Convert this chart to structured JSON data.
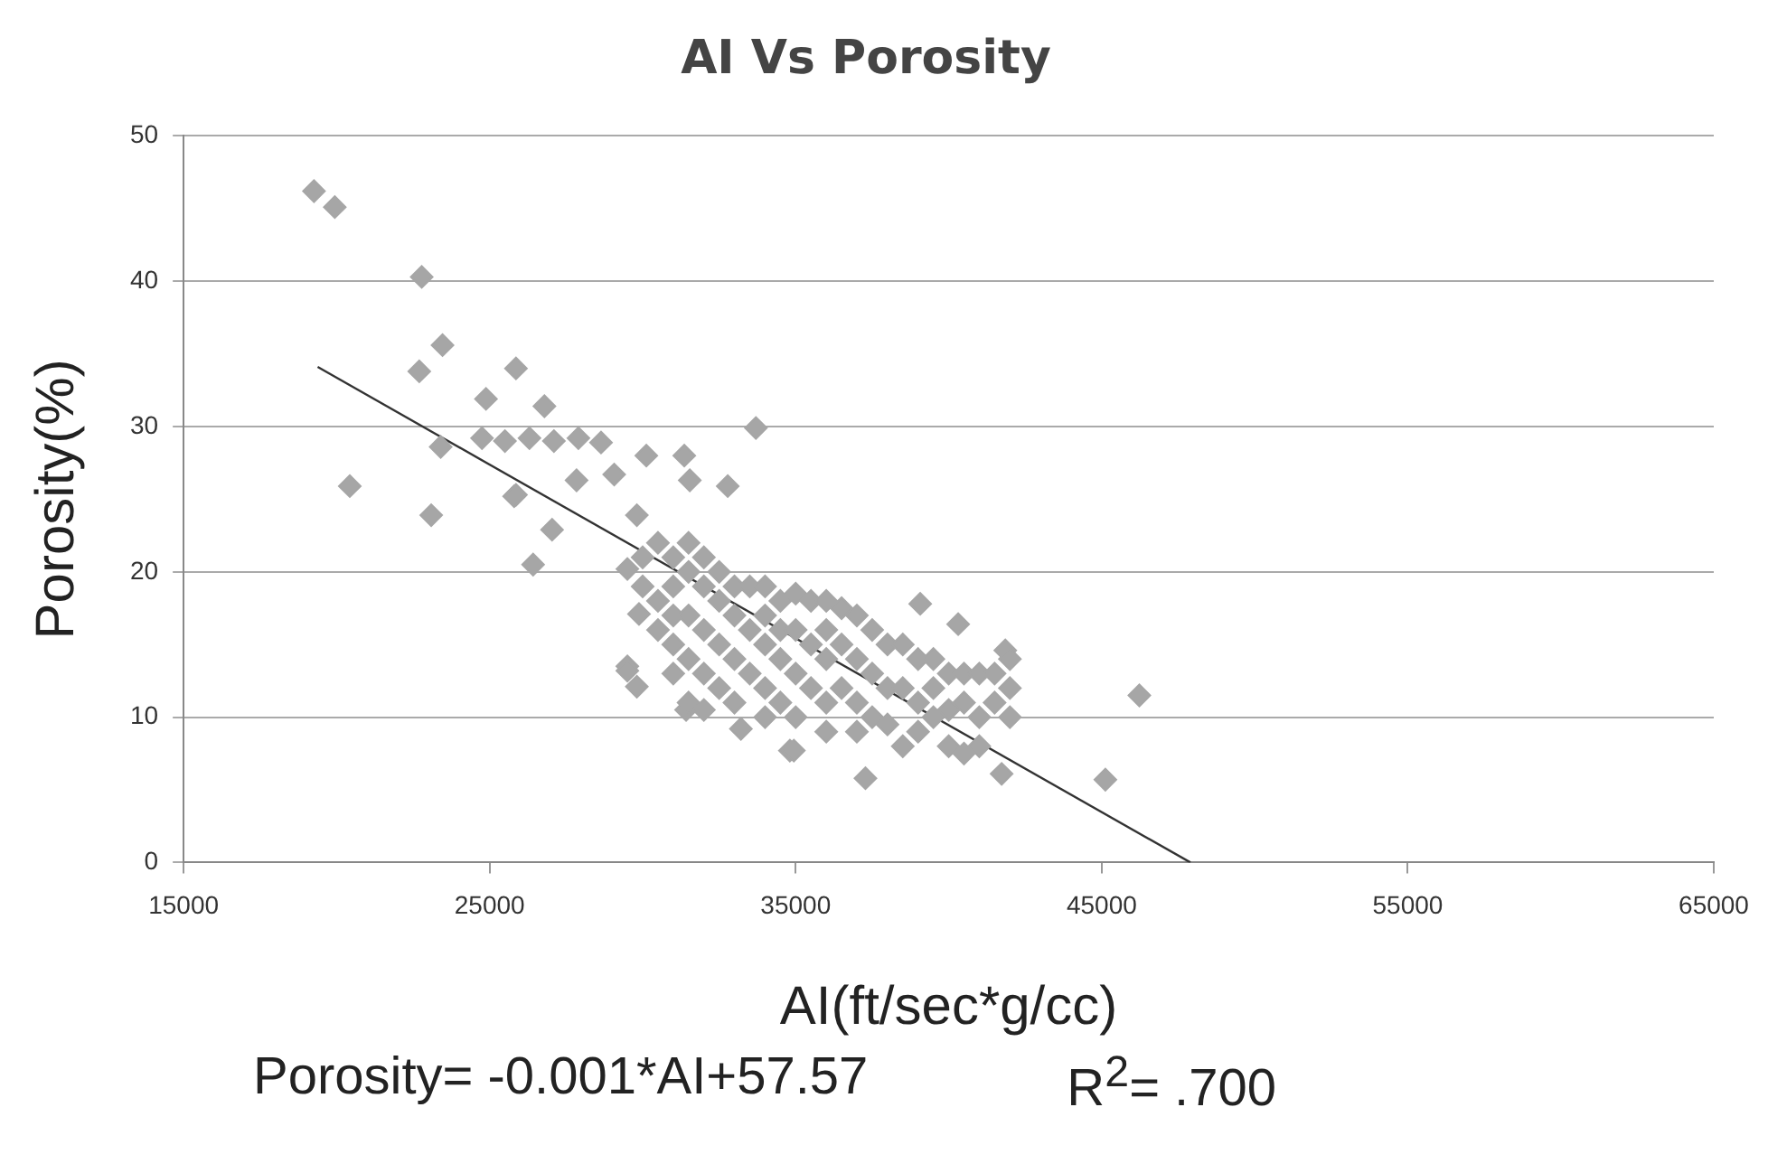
{
  "chart_data": {
    "type": "scatter",
    "title": "AI Vs Porosity",
    "xlabel": "AI(ft/sec*g/cc)",
    "ylabel": "Porosity(%)",
    "xlim": [
      15000,
      65000
    ],
    "xticks": [
      15000,
      25000,
      35000,
      45000,
      55000,
      65000
    ],
    "ylim": [
      0,
      50
    ],
    "yticks": [
      0,
      10,
      20,
      30,
      40,
      50
    ],
    "grid": "y",
    "legend": false,
    "marker": "diamond",
    "annotations": [
      "Porosity= -0.001*AI+57.57",
      "R$^{2}$= .700"
    ],
    "series": [
      {
        "color": "#a6a6a6",
        "x": [
          19260,
          19940,
          22780,
          23460,
          22700,
          25860,
          24880,
          26790,
          23400,
          20430,
          23090,
          25860,
          27040,
          26420,
          24750,
          25500,
          26300,
          27100,
          27900,
          28640,
          27840,
          29070,
          29810,
          29500,
          29880,
          29500,
          29810,
          30120,
          31360,
          33700,
          32780,
          31540,
          25800,
          29500,
          31420,
          33210,
          34810,
          39070,
          40310,
          46230,
          45120,
          41730,
          37280,
          34940,
          41850,
          30000,
          30000,
          30500,
          30500,
          30500,
          31000,
          31000,
          31000,
          31000,
          31000,
          31500,
          31500,
          31500,
          31500,
          31500,
          32000,
          32000,
          32000,
          32000,
          32000,
          32500,
          32500,
          32500,
          32500,
          33000,
          33000,
          33000,
          33000,
          33500,
          33500,
          33500,
          34000,
          34000,
          34000,
          34000,
          34000,
          34500,
          34500,
          34500,
          34500,
          35000,
          35000,
          35000,
          35000,
          35500,
          35500,
          35500,
          36000,
          36000,
          36000,
          36000,
          36000,
          36500,
          36500,
          36500,
          37000,
          37000,
          37000,
          37000,
          37500,
          37500,
          37500,
          38000,
          38000,
          38000,
          38500,
          38500,
          38500,
          39000,
          39000,
          39000,
          39500,
          39500,
          39500,
          40000,
          40000,
          40000,
          40500,
          40500,
          40500,
          41000,
          41000,
          41000,
          41500,
          41500,
          42000,
          42000,
          42000
        ],
        "values": [
          46.2,
          45.1,
          40.3,
          35.6,
          33.8,
          34.0,
          31.9,
          31.4,
          28.6,
          25.9,
          23.9,
          25.3,
          22.9,
          20.5,
          29.2,
          29.0,
          29.2,
          29.0,
          29.2,
          28.9,
          26.3,
          26.7,
          23.9,
          20.2,
          17.1,
          13.5,
          12.1,
          28.0,
          28.0,
          29.9,
          25.9,
          26.3,
          25.2,
          13.2,
          10.5,
          9.2,
          7.7,
          17.8,
          16.4,
          11.5,
          5.7,
          6.1,
          5.8,
          7.7,
          14.6,
          21,
          19,
          22,
          18,
          16,
          21,
          19,
          17,
          15,
          13,
          22,
          20,
          17,
          14,
          11,
          21,
          19,
          16,
          13,
          10.5,
          20,
          18,
          15,
          12,
          19,
          17,
          14,
          11,
          19,
          16,
          13,
          19,
          17,
          15,
          12,
          10,
          18,
          16,
          14,
          11,
          18.5,
          16,
          13,
          10,
          18,
          15,
          12,
          18,
          16,
          14,
          11,
          9,
          17.5,
          15,
          12,
          17,
          14,
          11,
          9,
          16,
          13,
          10,
          15,
          12,
          9.5,
          15,
          12,
          8,
          14,
          11,
          9,
          14,
          12,
          10,
          13,
          10.5,
          8,
          13,
          11,
          7.5,
          13,
          10,
          8,
          13,
          11,
          14,
          12,
          10
        ]
      },
      {
        "type": "line",
        "color": "#333333",
        "marker": "none",
        "x": [
          19380,
          47900
        ],
        "values": [
          34.1,
          0
        ]
      }
    ]
  }
}
